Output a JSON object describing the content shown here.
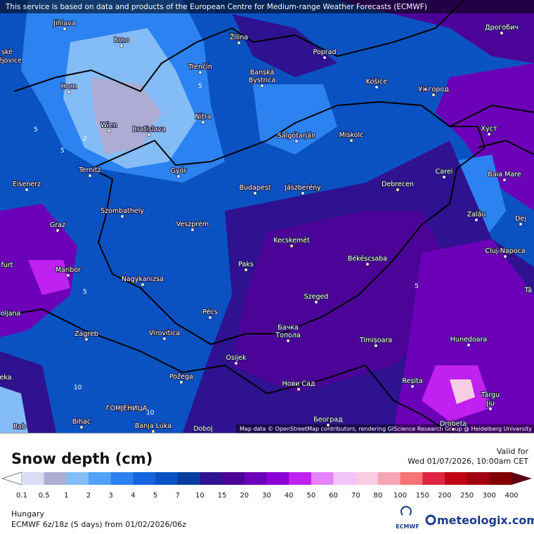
{
  "header_notice": "This service is based on data and products of the European Centre for Medium-range Weather Forecasts (ECMWF)",
  "attribution": "Map data © OpenStreetMap contributors, rendering GIScience Research Group @ Heidelberg University",
  "map": {
    "places": [
      "Jihlava",
      "Brno",
      "Žilina",
      "Poprad",
      "Дрогобич",
      "ské",
      "ějovice",
      "Trenčín",
      "Banská",
      "Bystrica",
      "Košice",
      "Ужгород",
      "Horn",
      "Nitra",
      "Wien",
      "Bratislava",
      "Salgótarján",
      "Miskolc",
      "Хуст",
      "Ternitz",
      "Győr",
      "Carei",
      "Baia Mare",
      "Eisenerz",
      "Budapest",
      "Jászberény",
      "Debrecen",
      "Szombathely",
      "Zalău",
      "Dej",
      "Graz",
      "Veszprém",
      "Kecskemét",
      "Cluj-Napoca",
      "furt",
      "Maribor",
      "Paks",
      "Békéscsaba",
      "Nagykanizsa",
      "Tâ",
      "oljana",
      "Pécs",
      "Szeged",
      "Zagreb",
      "Virovitica",
      "Бачка",
      "Топола",
      "Timișoara",
      "Hunedoara",
      "Osijek",
      "eka",
      "Požega",
      "Нови Сад",
      "Reșița",
      "Târgu",
      "Jiu",
      "ГОМЈЕНИЦА",
      "Bihać",
      "Banja Luka",
      "Doboj",
      "Београд",
      "Rab",
      "Drobeta"
    ],
    "contour_labels": [
      "2",
      "5",
      "5",
      "5",
      "5",
      "10",
      "10",
      "5"
    ]
  },
  "legend": {
    "title": "Snow depth (cm)",
    "labels": [
      0.1,
      0.5,
      1,
      2,
      3,
      4,
      5,
      7,
      10,
      15,
      20,
      30,
      40,
      50,
      60,
      70,
      80,
      100,
      150,
      200,
      250,
      300,
      400
    ],
    "colors": [
      "#ffffff",
      "#dcdcf4",
      "#acacd4",
      "#84bcf8",
      "#52a2f8",
      "#2c82f0",
      "#1464e0",
      "#0a52c2",
      "#083ea0",
      "#2e1290",
      "#4c0498",
      "#6c00b8",
      "#8c00d8",
      "#c020f0",
      "#e484f8",
      "#f2c4fa",
      "#f8cce2",
      "#f8a4b4",
      "#f87474",
      "#e02444",
      "#c00414",
      "#a00010",
      "#820004",
      "#600010"
    ]
  },
  "valid_label": "Valid for",
  "valid_time": "Wed 01/07/2026, 10:00am CET",
  "region": "Hungary",
  "model_info": "ECMWF 6z/18z (5 days) from 01/02/2026/06z",
  "ecmwf_logo": "ECMWF",
  "brand": "meteologix.com"
}
